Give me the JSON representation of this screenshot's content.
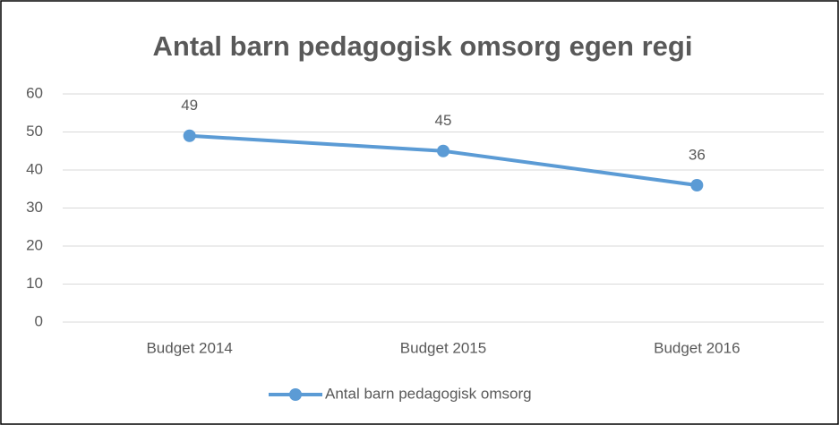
{
  "chart_data": {
    "type": "line",
    "title": "Antal barn pedagogisk omsorg egen regi",
    "categories": [
      "Budget 2014",
      "Budget 2015",
      "Budget 2016"
    ],
    "series": [
      {
        "name": "Antal barn pedagogisk omsorg",
        "color": "#5b9bd5",
        "values": [
          49,
          45,
          36
        ]
      }
    ],
    "ylim": [
      0,
      60
    ],
    "yticks": [
      0,
      10,
      20,
      30,
      40,
      50,
      60
    ],
    "grid": true,
    "legend": "bottom"
  }
}
